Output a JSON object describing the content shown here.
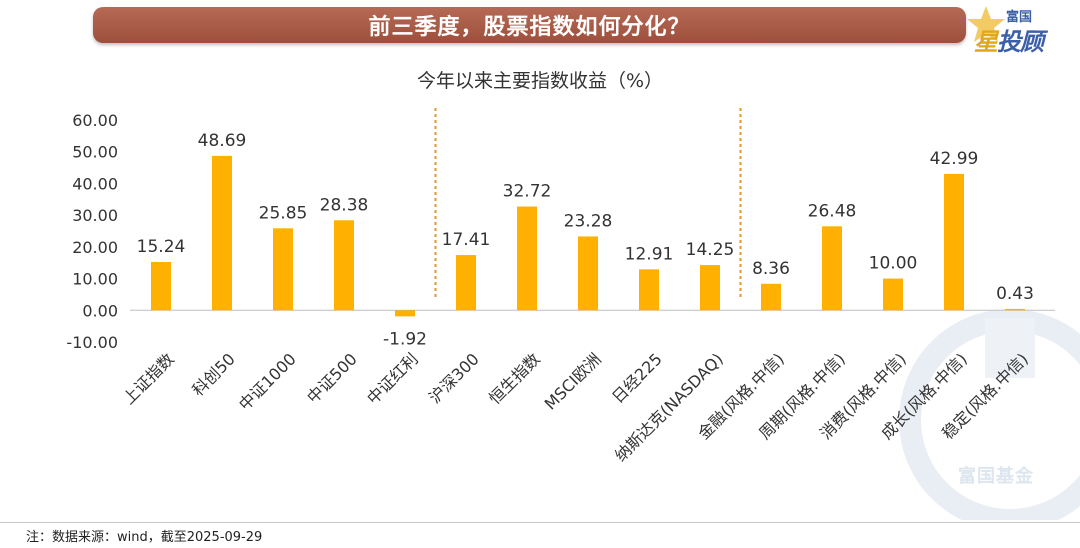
{
  "banner": {
    "title": "前三季度，股票指数如何分化？"
  },
  "logo": {
    "top_text": "富国",
    "bottom_text_1": "星",
    "bottom_text_2": "投顾"
  },
  "watermark": {
    "text": "富国基金"
  },
  "footnote": {
    "text": "注：数据来源：wind，截至2025-09-29"
  },
  "colors": {
    "bar": "#ffb000",
    "banner": "#a85a46",
    "divider": "#e09a2a",
    "axis_text": "#333333"
  },
  "chart_data": {
    "type": "bar",
    "title": "今年以来主要指数收益（%）",
    "xlabel": "",
    "ylabel": "",
    "ylim": [
      -10,
      60
    ],
    "yticks": [
      "60.00",
      "50.00",
      "40.00",
      "30.00",
      "20.00",
      "10.00",
      "0.00",
      "-10.00"
    ],
    "grid": false,
    "legend": "none",
    "categories": [
      "上证指数",
      "科创50",
      "中证1000",
      "中证500",
      "中证红利",
      "沪深300",
      "恒生指数",
      "MSCI欧洲",
      "日经225",
      "纳斯达克(NASDAQ)",
      "金融(风格.中信)",
      "周期(风格.中信)",
      "消费(风格.中信)",
      "成长(风格.中信)",
      "稳定(风格.中信)"
    ],
    "values": [
      15.24,
      48.69,
      25.85,
      28.38,
      -1.92,
      17.41,
      32.72,
      23.28,
      12.91,
      14.25,
      8.36,
      26.48,
      10.0,
      42.99,
      0.43
    ],
    "value_labels": [
      "15.24",
      "48.69",
      "25.85",
      "28.38",
      "-1.92",
      "17.41",
      "32.72",
      "23.28",
      "12.91",
      "14.25",
      "8.36",
      "26.48",
      "10.00",
      "42.99",
      "0.43"
    ],
    "group_dividers_after": [
      4,
      9
    ]
  }
}
